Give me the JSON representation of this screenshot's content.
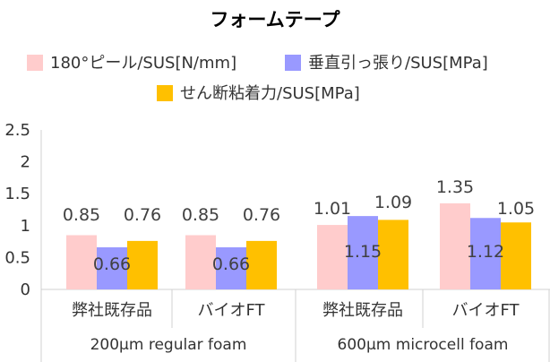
{
  "chart_data": {
    "type": "bar",
    "title": "フォームテープ",
    "xlabel": "",
    "ylabel": "",
    "ylim": [
      0,
      2.5
    ],
    "yticks": [
      "0",
      "0.5",
      "1",
      "1.5",
      "2",
      "2.5"
    ],
    "grid": false,
    "legend_position": "top",
    "categories": [
      "弊社既存品",
      "バイオFT",
      "弊社既存品",
      "バイオFT"
    ],
    "groups": [
      {
        "label": "200μm regular foam",
        "categories": [
          0,
          1
        ]
      },
      {
        "label": "600μm microcell foam",
        "categories": [
          2,
          3
        ]
      }
    ],
    "series": [
      {
        "name": "180°ピール/SUS[N/mm]",
        "color": "#FFCCCC",
        "values": [
          0.85,
          0.85,
          1.01,
          1.35
        ],
        "labels": [
          "0.85",
          "0.85",
          "1.01",
          "1.35"
        ]
      },
      {
        "name": "垂直引っ張り/SUS[MPa]",
        "color": "#9999FF",
        "values": [
          0.66,
          0.66,
          1.15,
          1.12
        ],
        "labels": [
          "0.66",
          "0.66",
          "1.15",
          "1.12"
        ]
      },
      {
        "name": "せん断粘着力/SUS[MPa]",
        "color": "#FFC000",
        "values": [
          0.76,
          0.76,
          1.09,
          1.05
        ],
        "labels": [
          "0.76",
          "0.76",
          "1.09",
          "1.05"
        ]
      }
    ]
  }
}
